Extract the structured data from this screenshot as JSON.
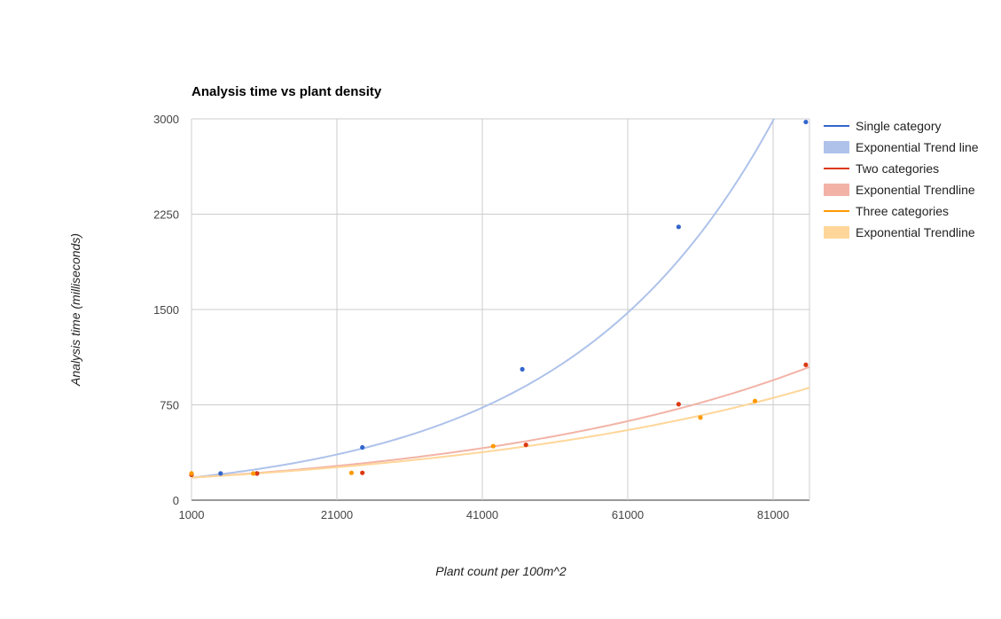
{
  "chart_data": {
    "type": "scatter",
    "title": "Analysis time vs plant density",
    "xlabel": "Plant count per 100m^2",
    "ylabel": "Analysis time (milliseconds)",
    "xlim": [
      1000,
      86000
    ],
    "ylim": [
      0,
      3000
    ],
    "xticks": [
      1000,
      21000,
      41000,
      61000,
      81000
    ],
    "yticks": [
      0,
      750,
      1500,
      2250,
      3000
    ],
    "grid": true,
    "legend_position": "right",
    "series": [
      {
        "name": "Single category",
        "color": "#3366cc",
        "x": [
          1000,
          5000,
          10000,
          24500,
          46500,
          68000,
          85500
        ],
        "y": [
          200,
          210,
          210,
          415,
          1030,
          2150,
          2975
        ]
      },
      {
        "name": "Two categories",
        "color": "#dc3912",
        "x": [
          1000,
          10000,
          24500,
          47000,
          68000,
          85500
        ],
        "y": [
          200,
          210,
          215,
          435,
          755,
          1065
        ]
      },
      {
        "name": "Three categories",
        "color": "#ff9900",
        "x": [
          1000,
          9500,
          23000,
          42500,
          71000,
          78500
        ],
        "y": [
          210,
          210,
          215,
          425,
          650,
          780
        ]
      }
    ],
    "trendlines": [
      {
        "name": "Exponential Trend line",
        "type": "exponential",
        "color": "#aec2ea",
        "a": 177.37,
        "b": 3.53e-05
      },
      {
        "name": "Exponential Trendline",
        "type": "exponential",
        "color": "#f2b3a6",
        "a": 177.37,
        "b": 2.09e-05
      },
      {
        "name": "Exponential Trendline",
        "type": "exponential",
        "color": "#ffd699",
        "a": 177.37,
        "b": 1.89e-05
      }
    ]
  }
}
